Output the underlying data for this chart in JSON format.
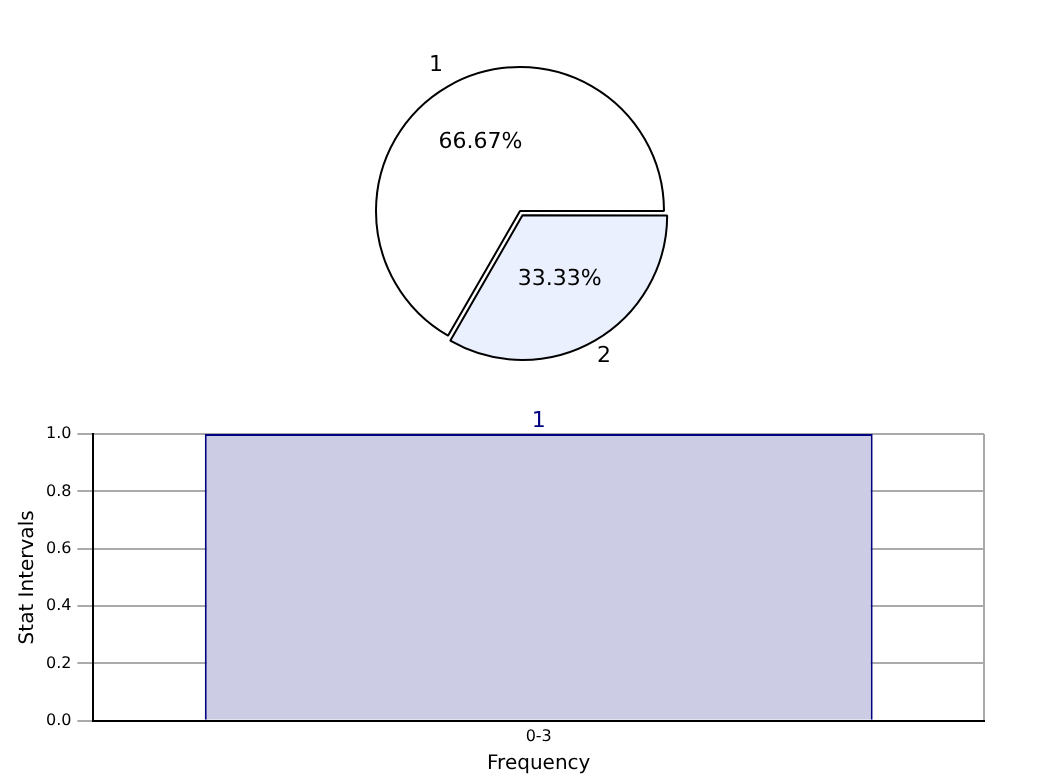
{
  "chart_data": [
    {
      "type": "pie",
      "categories": [
        "1",
        "2"
      ],
      "values": [
        66.67,
        33.33
      ],
      "colors": [
        "#ffffff",
        "#eaf0fd"
      ],
      "value_labels": [
        "66.67%",
        "33.33%"
      ],
      "legend": false
    },
    {
      "type": "bar",
      "categories": [
        "0-3"
      ],
      "values": [
        1
      ],
      "color": "#ccccE5",
      "xlabel": "Frequency",
      "ylabel": "Stat Intervals",
      "ylim": [
        0,
        1
      ],
      "yticks": [
        {
          "value": 0,
          "label": "0.0"
        },
        {
          "value": 0.2,
          "label": "0.2"
        },
        {
          "value": 0.4,
          "label": "0.4"
        },
        {
          "value": 0.6,
          "label": "0.6"
        },
        {
          "value": 0.8,
          "label": "0.8"
        },
        {
          "value": 1,
          "label": "1.0"
        }
      ],
      "grid": true,
      "data_labels": true,
      "legend": false
    }
  ]
}
